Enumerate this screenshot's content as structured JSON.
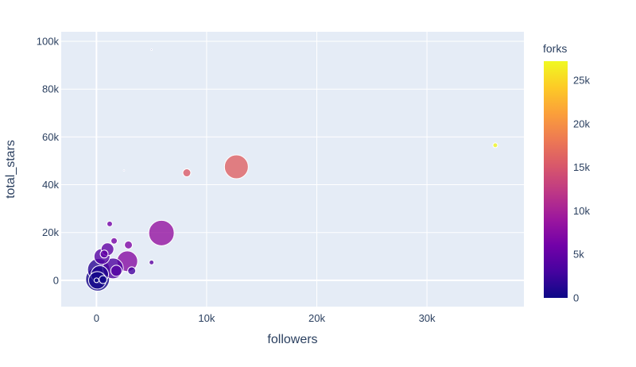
{
  "chart_data": {
    "type": "scatter",
    "xlabel": "followers",
    "ylabel": "total_stars",
    "xlim": [
      -3200,
      38800
    ],
    "ylim": [
      -11000,
      104000
    ],
    "x_ticks": [
      0,
      10000,
      20000,
      30000
    ],
    "x_tick_labels": [
      "0",
      "10k",
      "20k",
      "30k"
    ],
    "y_ticks": [
      0,
      20000,
      40000,
      60000,
      80000,
      100000
    ],
    "y_tick_labels": [
      "0",
      "20k",
      "40k",
      "60k",
      "80k",
      "100k"
    ],
    "grid": true,
    "size_encoding": "bubble size",
    "color_encoding": {
      "name": "forks",
      "range": [
        0,
        27200
      ],
      "ticks": [
        0,
        5000,
        10000,
        15000,
        20000,
        25000
      ],
      "tick_labels": [
        "0",
        "5k",
        "10k",
        "15k",
        "20k",
        "25k"
      ],
      "colorscale": [
        "#0d0887",
        "#46039f",
        "#7201a8",
        "#9c179e",
        "#bd3786",
        "#d8576b",
        "#ed7953",
        "#fb9f3a",
        "#fdca26",
        "#f0f921"
      ]
    },
    "points": [
      {
        "x": 36200,
        "y": 56500,
        "size": 6,
        "color": 27000
      },
      {
        "x": 12700,
        "y": 47500,
        "size": 30,
        "color": 16000
      },
      {
        "x": 8200,
        "y": 45000,
        "size": 10,
        "color": 15500
      },
      {
        "x": 5900,
        "y": 19800,
        "size": 32,
        "color": 8500
      },
      {
        "x": 5000,
        "y": 96500,
        "size": 1,
        "color": 500
      },
      {
        "x": 2500,
        "y": 46000,
        "size": 1,
        "color": 500
      },
      {
        "x": 2800,
        "y": 8000,
        "size": 26,
        "color": 7500
      },
      {
        "x": 2900,
        "y": 14800,
        "size": 10,
        "color": 7000
      },
      {
        "x": 1600,
        "y": 16500,
        "size": 8,
        "color": 6500
      },
      {
        "x": 1200,
        "y": 23600,
        "size": 7,
        "color": 6200
      },
      {
        "x": 1000,
        "y": 13000,
        "size": 16,
        "color": 4800
      },
      {
        "x": 500,
        "y": 10000,
        "size": 20,
        "color": 4000
      },
      {
        "x": 700,
        "y": 11000,
        "size": 10,
        "color": 5000
      },
      {
        "x": 5000,
        "y": 7500,
        "size": 6,
        "color": 4500
      },
      {
        "x": 3200,
        "y": 4000,
        "size": 10,
        "color": 3000
      },
      {
        "x": 1500,
        "y": 5000,
        "size": 26,
        "color": 3500
      },
      {
        "x": 1800,
        "y": 4000,
        "size": 14,
        "color": 4000
      },
      {
        "x": 200,
        "y": 4500,
        "size": 28,
        "color": 1500
      },
      {
        "x": 300,
        "y": 2500,
        "size": 22,
        "color": 1000
      },
      {
        "x": 100,
        "y": 500,
        "size": 30,
        "color": 500
      },
      {
        "x": 80,
        "y": 0,
        "size": 22,
        "color": 300
      },
      {
        "x": 600,
        "y": 300,
        "size": 10,
        "color": 300
      },
      {
        "x": 0,
        "y": 0,
        "size": 6,
        "color": 0
      }
    ]
  }
}
